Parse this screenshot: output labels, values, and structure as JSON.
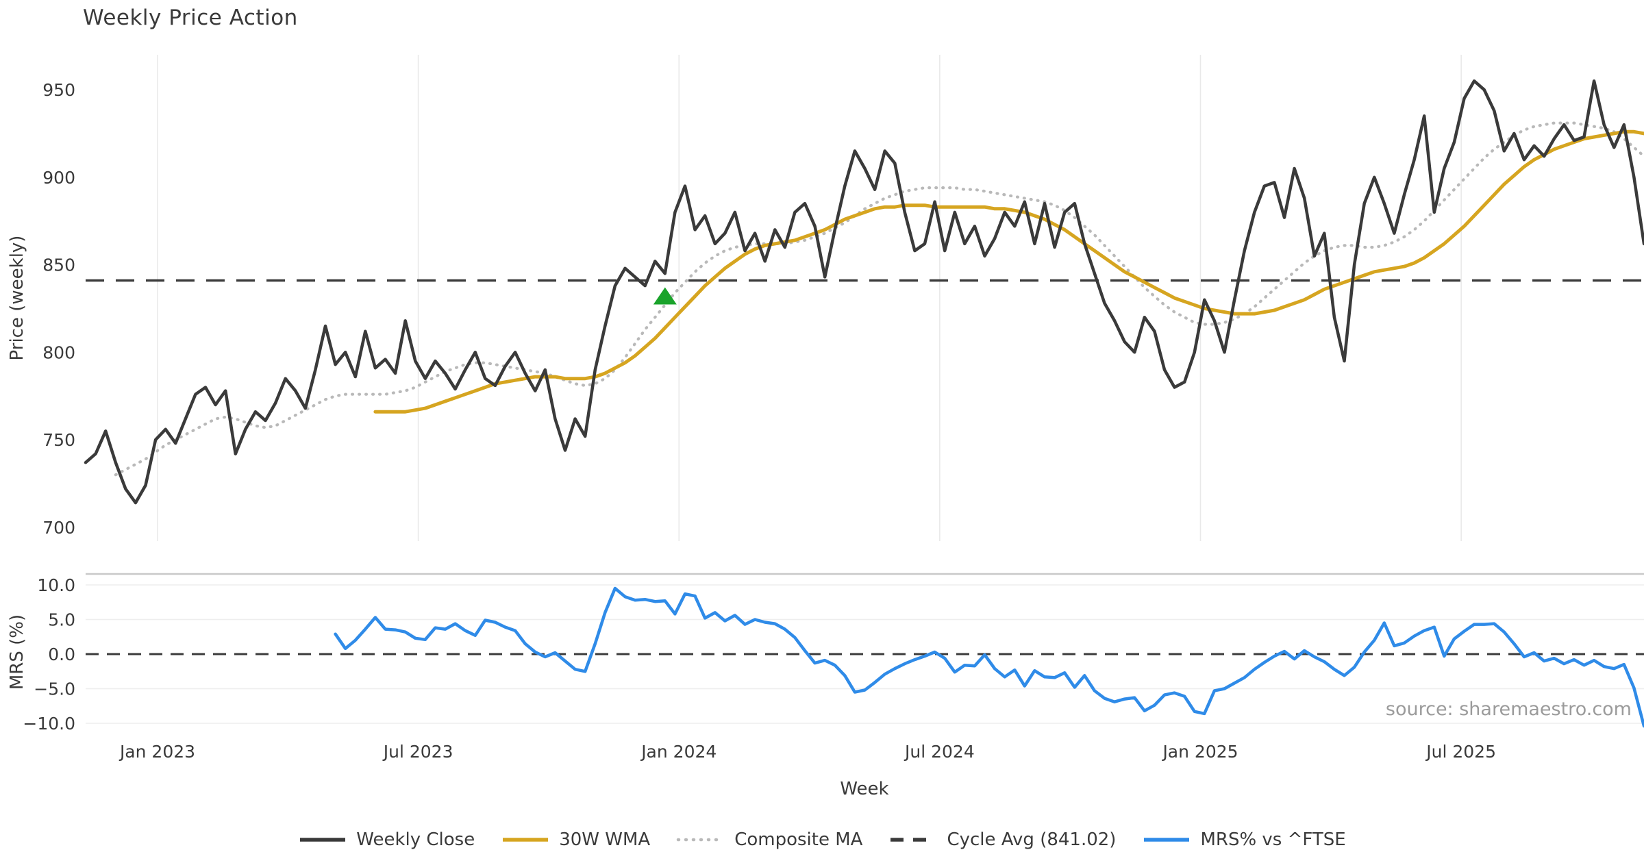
{
  "header": {
    "title": "Weekly Price Action"
  },
  "source_note": "source: sharemaestro.com",
  "colors": {
    "close": "#3a3a3a",
    "wma": "#d6a520",
    "composite": "#b9b9b9",
    "cycle_avg": "#3b3b3b",
    "mrs": "#2f8be8",
    "marker": "#1aa32b",
    "grid": "#e9e9e9",
    "grid_light": "#eeeeee",
    "spine": "#c9c9c9",
    "text": "#3a3a3a",
    "source": "#9b9b9b"
  },
  "chart_data": {
    "type": "line",
    "title": "Weekly Price Action",
    "x_axis": {
      "label": "Week",
      "total_weeks": 156,
      "ticks": [
        {
          "label": "Jan 2023",
          "week": 7.2
        },
        {
          "label": "Jul 2023",
          "week": 33.3
        },
        {
          "label": "Jan 2024",
          "week": 59.4
        },
        {
          "label": "Jul 2024",
          "week": 85.5
        },
        {
          "label": "Jan 2025",
          "week": 111.6
        },
        {
          "label": "Jul 2025",
          "week": 137.7
        }
      ]
    },
    "price_panel": {
      "ylabel": "Price (weekly)",
      "ylim": [
        697,
        962
      ],
      "yticks": [
        950,
        900,
        850,
        800,
        750,
        700
      ],
      "grid": "vertical",
      "cycle_avg": 841.02,
      "series": [
        {
          "name": "Composite MA",
          "style": "dotted",
          "color_key": "composite",
          "start_week": 3,
          "values": [
            730,
            733,
            736,
            739,
            743,
            747,
            750,
            753,
            756,
            759,
            762,
            763,
            762,
            760,
            758,
            757,
            758,
            761,
            764,
            767,
            770,
            773,
            775,
            776,
            776,
            776,
            776,
            776,
            777,
            778,
            780,
            783,
            786,
            789,
            791,
            793,
            794,
            794,
            793,
            792,
            791,
            790,
            789,
            788,
            786,
            784,
            782,
            781,
            782,
            785,
            790,
            797,
            805,
            813,
            820,
            827,
            834,
            840,
            846,
            851,
            855,
            858,
            860,
            861,
            862,
            862,
            862,
            862,
            863,
            864,
            866,
            868,
            871,
            874,
            878,
            882,
            885,
            888,
            890,
            892,
            893,
            894,
            894,
            894,
            894,
            893,
            893,
            892,
            891,
            890,
            889,
            888,
            887,
            886,
            884,
            881,
            877,
            872,
            867,
            861,
            855,
            849,
            843,
            837,
            832,
            827,
            823,
            820,
            817,
            816,
            816,
            817,
            819,
            822,
            826,
            831,
            836,
            841,
            846,
            851,
            855,
            858,
            860,
            861,
            861,
            860,
            860,
            861,
            863,
            866,
            870,
            875,
            881,
            887,
            893,
            899,
            905,
            911,
            916,
            920,
            924,
            927,
            929,
            930,
            931,
            931,
            931,
            930,
            929,
            928,
            926,
            922,
            917,
            912
          ]
        },
        {
          "name": "30W WMA",
          "style": "solid",
          "color_key": "wma",
          "start_week": 29,
          "values": [
            766,
            766,
            766,
            766,
            767,
            768,
            770,
            772,
            774,
            776,
            778,
            780,
            782,
            783,
            784,
            785,
            786,
            786,
            786,
            785,
            785,
            785,
            786,
            788,
            791,
            794,
            798,
            803,
            808,
            814,
            820,
            826,
            832,
            838,
            843,
            848,
            852,
            856,
            859,
            861,
            862,
            863,
            864,
            866,
            868,
            870,
            873,
            876,
            878,
            880,
            882,
            883,
            883,
            884,
            884,
            884,
            883,
            883,
            883,
            883,
            883,
            883,
            882,
            882,
            881,
            880,
            878,
            876,
            873,
            870,
            866,
            862,
            858,
            854,
            850,
            846,
            843,
            840,
            837,
            834,
            831,
            829,
            827,
            825,
            824,
            823,
            822,
            822,
            822,
            823,
            824,
            826,
            828,
            830,
            833,
            836,
            838,
            840,
            842,
            844,
            846,
            847,
            848,
            849,
            851,
            854,
            858,
            862,
            867,
            872,
            878,
            884,
            890,
            896,
            901,
            906,
            910,
            913,
            916,
            918,
            920,
            922,
            923,
            924,
            925,
            926,
            926,
            925,
            923
          ]
        },
        {
          "name": "Weekly Close",
          "style": "solid",
          "color_key": "close",
          "start_week": 0,
          "values": [
            737,
            742,
            755,
            737,
            722,
            714,
            724,
            750,
            756,
            748,
            762,
            776,
            780,
            770,
            778,
            742,
            756,
            766,
            761,
            771,
            785,
            778,
            768,
            790,
            815,
            793,
            800,
            786,
            812,
            791,
            796,
            788,
            818,
            795,
            785,
            795,
            788,
            779,
            790,
            800,
            785,
            781,
            792,
            800,
            788,
            778,
            790,
            762,
            744,
            762,
            752,
            790,
            815,
            838,
            848,
            843,
            838,
            852,
            845,
            880,
            895,
            870,
            878,
            862,
            868,
            880,
            858,
            868,
            852,
            870,
            860,
            880,
            885,
            872,
            843,
            870,
            895,
            915,
            905,
            893,
            915,
            908,
            880,
            858,
            862,
            886,
            858,
            880,
            862,
            872,
            855,
            865,
            880,
            872,
            886,
            862,
            885,
            860,
            880,
            885,
            862,
            845,
            828,
            818,
            806,
            800,
            820,
            812,
            790,
            780,
            783,
            800,
            830,
            818,
            800,
            830,
            858,
            880,
            895,
            897,
            877,
            905,
            888,
            855,
            868,
            820,
            795,
            850,
            885,
            900,
            885,
            868,
            890,
            910,
            935,
            880,
            905,
            920,
            945,
            955,
            950,
            938,
            915,
            925,
            910,
            918,
            912,
            922,
            930,
            921,
            923,
            955,
            930,
            917,
            930,
            900,
            862
          ]
        }
      ],
      "marker": {
        "type": "triangle-up",
        "week": 58,
        "price": 832,
        "color_key": "marker"
      }
    },
    "mrs_panel": {
      "ylabel": "MRS (%)",
      "ylim": [
        -11.5,
        11.5
      ],
      "yticks": [
        {
          "label": "10.0",
          "value": 10
        },
        {
          "label": "5.0",
          "value": 5
        },
        {
          "label": "0.0",
          "value": 0
        },
        {
          "label": "−5.0",
          "value": -5
        },
        {
          "label": "−10.0",
          "value": -10
        }
      ],
      "grid": "horizontal",
      "zero_line": 0,
      "series": [
        {
          "name": "MRS% vs ^FTSE",
          "style": "solid",
          "color_key": "mrs",
          "start_week": 25,
          "values": [
            2.9,
            0.8,
            2.0,
            3.6,
            5.3,
            3.6,
            3.5,
            3.2,
            2.3,
            2.1,
            3.8,
            3.6,
            4.4,
            3.4,
            2.7,
            4.9,
            4.6,
            3.9,
            3.4,
            1.5,
            0.3,
            -0.4,
            0.2,
            -1.0,
            -2.2,
            -2.5,
            1.5,
            6.0,
            9.5,
            8.3,
            7.8,
            7.9,
            7.6,
            7.7,
            5.8,
            8.7,
            8.4,
            5.2,
            6.0,
            4.8,
            5.6,
            4.3,
            5.0,
            4.6,
            4.4,
            3.6,
            2.4,
            0.5,
            -1.3,
            -0.9,
            -1.6,
            -3.1,
            -5.5,
            -5.2,
            -4.1,
            -2.9,
            -2.1,
            -1.4,
            -0.8,
            -0.3,
            0.3,
            -0.6,
            -2.6,
            -1.6,
            -1.7,
            -0.1,
            -2.1,
            -3.3,
            -2.3,
            -4.6,
            -2.4,
            -3.3,
            -3.4,
            -2.7,
            -4.8,
            -3.1,
            -5.3,
            -6.4,
            -6.9,
            -6.5,
            -6.3,
            -8.2,
            -7.4,
            -5.9,
            -5.6,
            -6.1,
            -8.3,
            -8.6,
            -5.3,
            -5.0,
            -4.2,
            -3.4,
            -2.2,
            -1.2,
            -0.3,
            0.4,
            -0.7,
            0.5,
            -0.4,
            -1.1,
            -2.2,
            -3.1,
            -1.9,
            0.3,
            2.0,
            4.5,
            1.2,
            1.6,
            2.6,
            3.4,
            3.9,
            -0.3,
            2.2,
            3.3,
            4.3,
            4.3,
            4.4,
            3.2,
            1.5,
            -0.4,
            0.2,
            -1.0,
            -0.6,
            -1.4,
            -0.8,
            -1.6,
            -0.9,
            -1.8,
            -2.1,
            -1.5,
            -4.9,
            -10.4
          ]
        }
      ]
    },
    "legend": [
      {
        "label": "Weekly Close",
        "style": "solid",
        "color_key": "close"
      },
      {
        "label": "30W WMA",
        "style": "solid",
        "color_key": "wma"
      },
      {
        "label": "Composite MA",
        "style": "dotted",
        "color_key": "composite"
      },
      {
        "label": "Cycle Avg (841.02)",
        "style": "dashed",
        "color_key": "cycle_avg"
      },
      {
        "label": "MRS% vs ^FTSE",
        "style": "solid",
        "color_key": "mrs"
      }
    ]
  }
}
